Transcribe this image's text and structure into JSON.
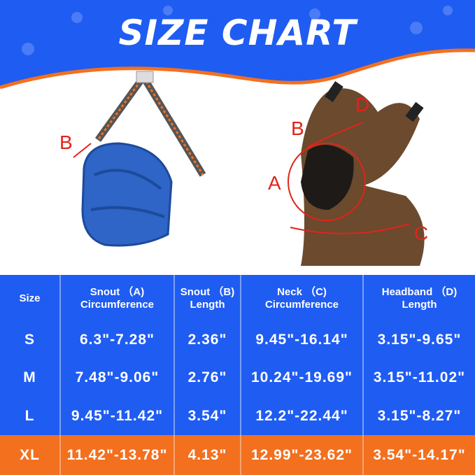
{
  "title": "SIZE CHART",
  "colors": {
    "blue": "#1f5cf2",
    "orange": "#f3701f",
    "marker": "#e2231a"
  },
  "labels": {
    "muzzle_b": "B",
    "dog_a": "A",
    "dog_b": "B",
    "dog_c": "C",
    "dog_d": "D"
  },
  "table": {
    "headers": [
      {
        "line1": "Size",
        "line2": ""
      },
      {
        "line1": "Snout （A)",
        "line2": "Circumference"
      },
      {
        "line1": "Snout （B)",
        "line2": "Length"
      },
      {
        "line1": "Neck （C)",
        "line2": "Circumference"
      },
      {
        "line1": "Headband （D)",
        "line2": "Length"
      }
    ],
    "rows": [
      [
        "S",
        "6.3\"-7.28\"",
        "2.36\"",
        "9.45\"-16.14\"",
        "3.15\"-9.65\""
      ],
      [
        "M",
        "7.48\"-9.06\"",
        "2.76\"",
        "10.24\"-19.69\"",
        "3.15\"-11.02\""
      ],
      [
        "L",
        "9.45\"-11.42\"",
        "3.54\"",
        "12.2\"-22.44\"",
        "3.15\"-8.27\""
      ],
      [
        "XL",
        "11.42\"-13.78\"",
        "4.13\"",
        "12.99\"-23.62\"",
        "3.54\"-14.17\""
      ]
    ]
  }
}
